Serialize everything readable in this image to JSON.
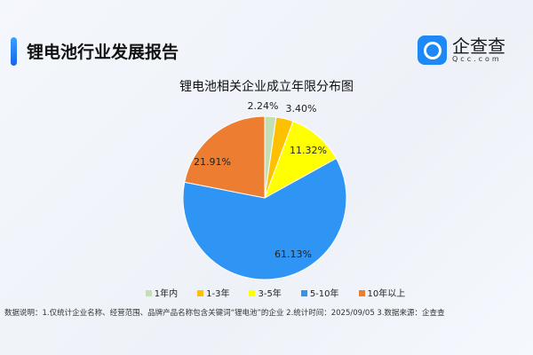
{
  "header": {
    "title": "锂电池行业发展报告",
    "logo_text": "企查查",
    "logo_sub": "Qcc.com"
  },
  "chart_data": {
    "type": "pie",
    "title": "锂电池相关企业成立年限分布图",
    "categories": [
      "1年内",
      "1-3年",
      "3-5年",
      "5-10年",
      "10年以上"
    ],
    "values": [
      2.24,
      3.4,
      11.32,
      61.13,
      21.91
    ],
    "labels": [
      "2.24%",
      "3.40%",
      "11.32%",
      "61.13%",
      "21.91%"
    ],
    "colors": [
      "#c5dfb4",
      "#ffc000",
      "#ffff00",
      "#2e95f5",
      "#ed7d31"
    ],
    "legend": "bottom"
  },
  "note": "数据说明：1.仅统计企业名称、经营范围、品牌产品名称包含关键词“锂电池”的企业   2.统计时间：2025/09/05    3.数据来源：企查查"
}
